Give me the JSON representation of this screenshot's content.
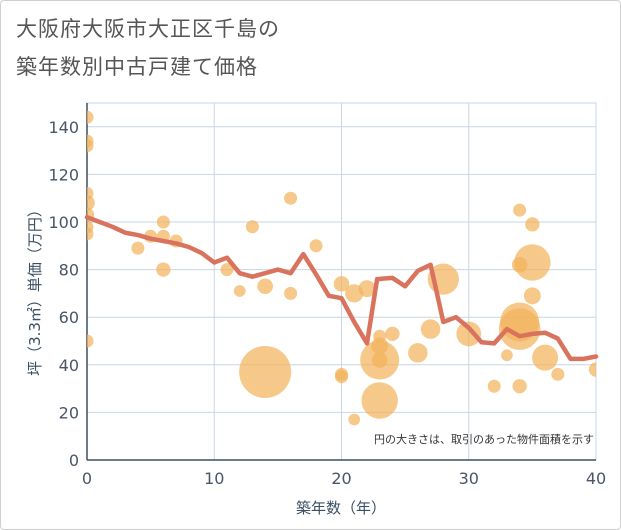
{
  "title_line1": "大阪府大阪市大正区千島の",
  "title_line2": "築年数別中古戸建て価格",
  "chart_data": {
    "type": "scatter",
    "title": "大阪府大阪市大正区千島の築年数別中古戸建て価格",
    "xlabel": "築年数（年）",
    "ylabel": "坪（3.3㎡）単価（万円）",
    "xlim": [
      0,
      40
    ],
    "ylim": [
      0,
      150
    ],
    "xticks": [
      0,
      10,
      20,
      30,
      40
    ],
    "yticks": [
      0,
      20,
      40,
      60,
      80,
      100,
      120,
      140
    ],
    "grid": true,
    "note": "円の大きさは、取引のあった物件面積を示す",
    "colors": {
      "bubble": "#f2b35c",
      "line": "#d9735e",
      "grid": "#c9d6e3"
    },
    "points": [
      {
        "x": 0,
        "y": 144,
        "s": 1
      },
      {
        "x": 0,
        "y": 134,
        "s": 1
      },
      {
        "x": 0,
        "y": 132,
        "s": 1
      },
      {
        "x": 0,
        "y": 112,
        "s": 1
      },
      {
        "x": 0,
        "y": 108,
        "s": 1.2
      },
      {
        "x": 0,
        "y": 103,
        "s": 1.1
      },
      {
        "x": 0,
        "y": 98,
        "s": 1
      },
      {
        "x": 0,
        "y": 95,
        "s": 1
      },
      {
        "x": 0,
        "y": 50,
        "s": 1
      },
      {
        "x": 4,
        "y": 89,
        "s": 1
      },
      {
        "x": 5,
        "y": 94,
        "s": 1
      },
      {
        "x": 6,
        "y": 100,
        "s": 1
      },
      {
        "x": 6,
        "y": 94,
        "s": 1
      },
      {
        "x": 6,
        "y": 80,
        "s": 1.1
      },
      {
        "x": 7,
        "y": 92,
        "s": 1
      },
      {
        "x": 11,
        "y": 80,
        "s": 1
      },
      {
        "x": 12,
        "y": 71,
        "s": 0.9
      },
      {
        "x": 13,
        "y": 98,
        "s": 1
      },
      {
        "x": 14,
        "y": 73,
        "s": 1.2
      },
      {
        "x": 14,
        "y": 37,
        "s": 4
      },
      {
        "x": 16,
        "y": 110,
        "s": 1
      },
      {
        "x": 16,
        "y": 70,
        "s": 1
      },
      {
        "x": 18,
        "y": 90,
        "s": 1
      },
      {
        "x": 20,
        "y": 74,
        "s": 1.2
      },
      {
        "x": 20,
        "y": 36,
        "s": 1
      },
      {
        "x": 20,
        "y": 35,
        "s": 1
      },
      {
        "x": 21,
        "y": 70,
        "s": 1.4
      },
      {
        "x": 21,
        "y": 17,
        "s": 0.9
      },
      {
        "x": 22,
        "y": 72,
        "s": 1.3
      },
      {
        "x": 23,
        "y": 52,
        "s": 1
      },
      {
        "x": 23,
        "y": 48,
        "s": 1.3
      },
      {
        "x": 23,
        "y": 42,
        "s": 3
      },
      {
        "x": 23,
        "y": 42,
        "s": 1.2
      },
      {
        "x": 23,
        "y": 25,
        "s": 2.8
      },
      {
        "x": 24,
        "y": 53,
        "s": 1.1
      },
      {
        "x": 26,
        "y": 45,
        "s": 1.5
      },
      {
        "x": 27,
        "y": 55,
        "s": 1.5
      },
      {
        "x": 28,
        "y": 76,
        "s": 2.4
      },
      {
        "x": 30,
        "y": 53,
        "s": 1.9
      },
      {
        "x": 32,
        "y": 31,
        "s": 1
      },
      {
        "x": 33,
        "y": 44,
        "s": 0.9
      },
      {
        "x": 34,
        "y": 105,
        "s": 1
      },
      {
        "x": 34,
        "y": 82,
        "s": 1.2
      },
      {
        "x": 34,
        "y": 58,
        "s": 3
      },
      {
        "x": 34,
        "y": 55,
        "s": 3.2
      },
      {
        "x": 34,
        "y": 31,
        "s": 1.1
      },
      {
        "x": 35,
        "y": 99,
        "s": 1.1
      },
      {
        "x": 35,
        "y": 83,
        "s": 2.8
      },
      {
        "x": 35,
        "y": 69,
        "s": 1.3
      },
      {
        "x": 36,
        "y": 43,
        "s": 2
      },
      {
        "x": 37,
        "y": 36,
        "s": 1
      },
      {
        "x": 40,
        "y": 38,
        "s": 1.1
      }
    ],
    "trend": [
      {
        "x": 0,
        "y": 102
      },
      {
        "x": 1,
        "y": 100
      },
      {
        "x": 2,
        "y": 98
      },
      {
        "x": 3,
        "y": 95.5
      },
      {
        "x": 4,
        "y": 94.5
      },
      {
        "x": 5,
        "y": 93
      },
      {
        "x": 6,
        "y": 92
      },
      {
        "x": 7,
        "y": 91
      },
      {
        "x": 8,
        "y": 89.5
      },
      {
        "x": 9,
        "y": 87
      },
      {
        "x": 10,
        "y": 83
      },
      {
        "x": 11,
        "y": 85
      },
      {
        "x": 12,
        "y": 78.5
      },
      {
        "x": 13,
        "y": 77
      },
      {
        "x": 14,
        "y": 78.5
      },
      {
        "x": 15,
        "y": 80
      },
      {
        "x": 16,
        "y": 78.5
      },
      {
        "x": 17,
        "y": 86.5
      },
      {
        "x": 18,
        "y": 78
      },
      {
        "x": 19,
        "y": 69
      },
      {
        "x": 20,
        "y": 68
      },
      {
        "x": 21,
        "y": 58
      },
      {
        "x": 22,
        "y": 49
      },
      {
        "x": 22.8,
        "y": 76
      },
      {
        "x": 24,
        "y": 76.5
      },
      {
        "x": 25,
        "y": 73
      },
      {
        "x": 26,
        "y": 79.5
      },
      {
        "x": 27,
        "y": 82
      },
      {
        "x": 28,
        "y": 58
      },
      {
        "x": 29,
        "y": 60
      },
      {
        "x": 30,
        "y": 55.5
      },
      {
        "x": 31,
        "y": 49.5
      },
      {
        "x": 32,
        "y": 49
      },
      {
        "x": 33,
        "y": 55
      },
      {
        "x": 34,
        "y": 52
      },
      {
        "x": 35,
        "y": 53
      },
      {
        "x": 36,
        "y": 53.5
      },
      {
        "x": 37,
        "y": 51
      },
      {
        "x": 38,
        "y": 42.5
      },
      {
        "x": 39,
        "y": 42.5
      },
      {
        "x": 40,
        "y": 43.5
      }
    ]
  }
}
